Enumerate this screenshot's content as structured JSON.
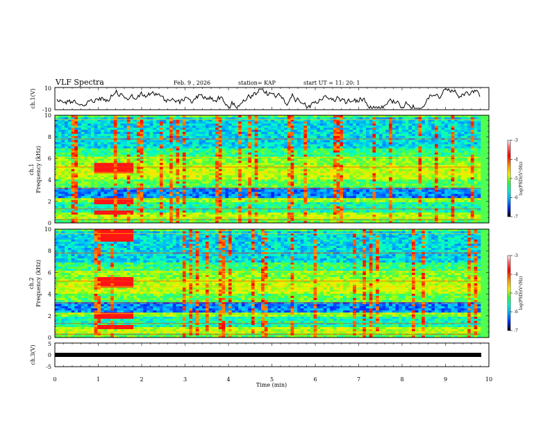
{
  "header": {
    "title": "VLF Spectra",
    "date": "Feb. 9  , 2026",
    "station": "station= KAP",
    "start": "start  UT =   11: 20: 1"
  },
  "chart_data": [
    {
      "type": "line",
      "name": "ch1-waveform",
      "ylabel": "ch.1(V)",
      "ylim": [
        -10,
        10
      ],
      "yticks": [
        "10",
        "-10"
      ],
      "xlim": [
        0,
        10
      ]
    },
    {
      "type": "heatmap",
      "name": "ch1-spectrogram",
      "ylabel_line1": "ch.1",
      "ylabel_line2": "Frequency (kHz)",
      "ylim": [
        0,
        10
      ],
      "yticks": [
        "0",
        "2",
        "4",
        "6",
        "8",
        "10"
      ],
      "xlim": [
        0,
        10
      ],
      "colorbar": {
        "label": "log(PSD)(V²/Hz)",
        "ticks": [
          "-3",
          "-4",
          "-5",
          "-6",
          "-7"
        ],
        "range": [
          -7,
          -3
        ]
      }
    },
    {
      "type": "heatmap",
      "name": "ch2-spectrogram",
      "ylabel_line1": "ch.2",
      "ylabel_line2": "Frequency (kHz)",
      "ylim": [
        0,
        10
      ],
      "yticks": [
        "0",
        "2",
        "4",
        "6",
        "8",
        "10"
      ],
      "xlim": [
        0,
        10
      ],
      "colorbar": {
        "label": "log(PSD)(V²/Hz)",
        "ticks": [
          "-3",
          "-4",
          "-5",
          "-6",
          "-7"
        ],
        "range": [
          -7,
          -3
        ]
      }
    },
    {
      "type": "line",
      "name": "ch3-waveform",
      "ylabel": "ch.3(V)",
      "ylim": [
        -5,
        5
      ],
      "yticks": [
        "5",
        "0",
        "-5"
      ],
      "xlim": [
        0,
        10
      ],
      "xlabel": "Time (min)",
      "xticks": [
        "0",
        "1",
        "2",
        "3",
        "4",
        "5",
        "6",
        "7",
        "8",
        "9",
        "10"
      ]
    }
  ]
}
